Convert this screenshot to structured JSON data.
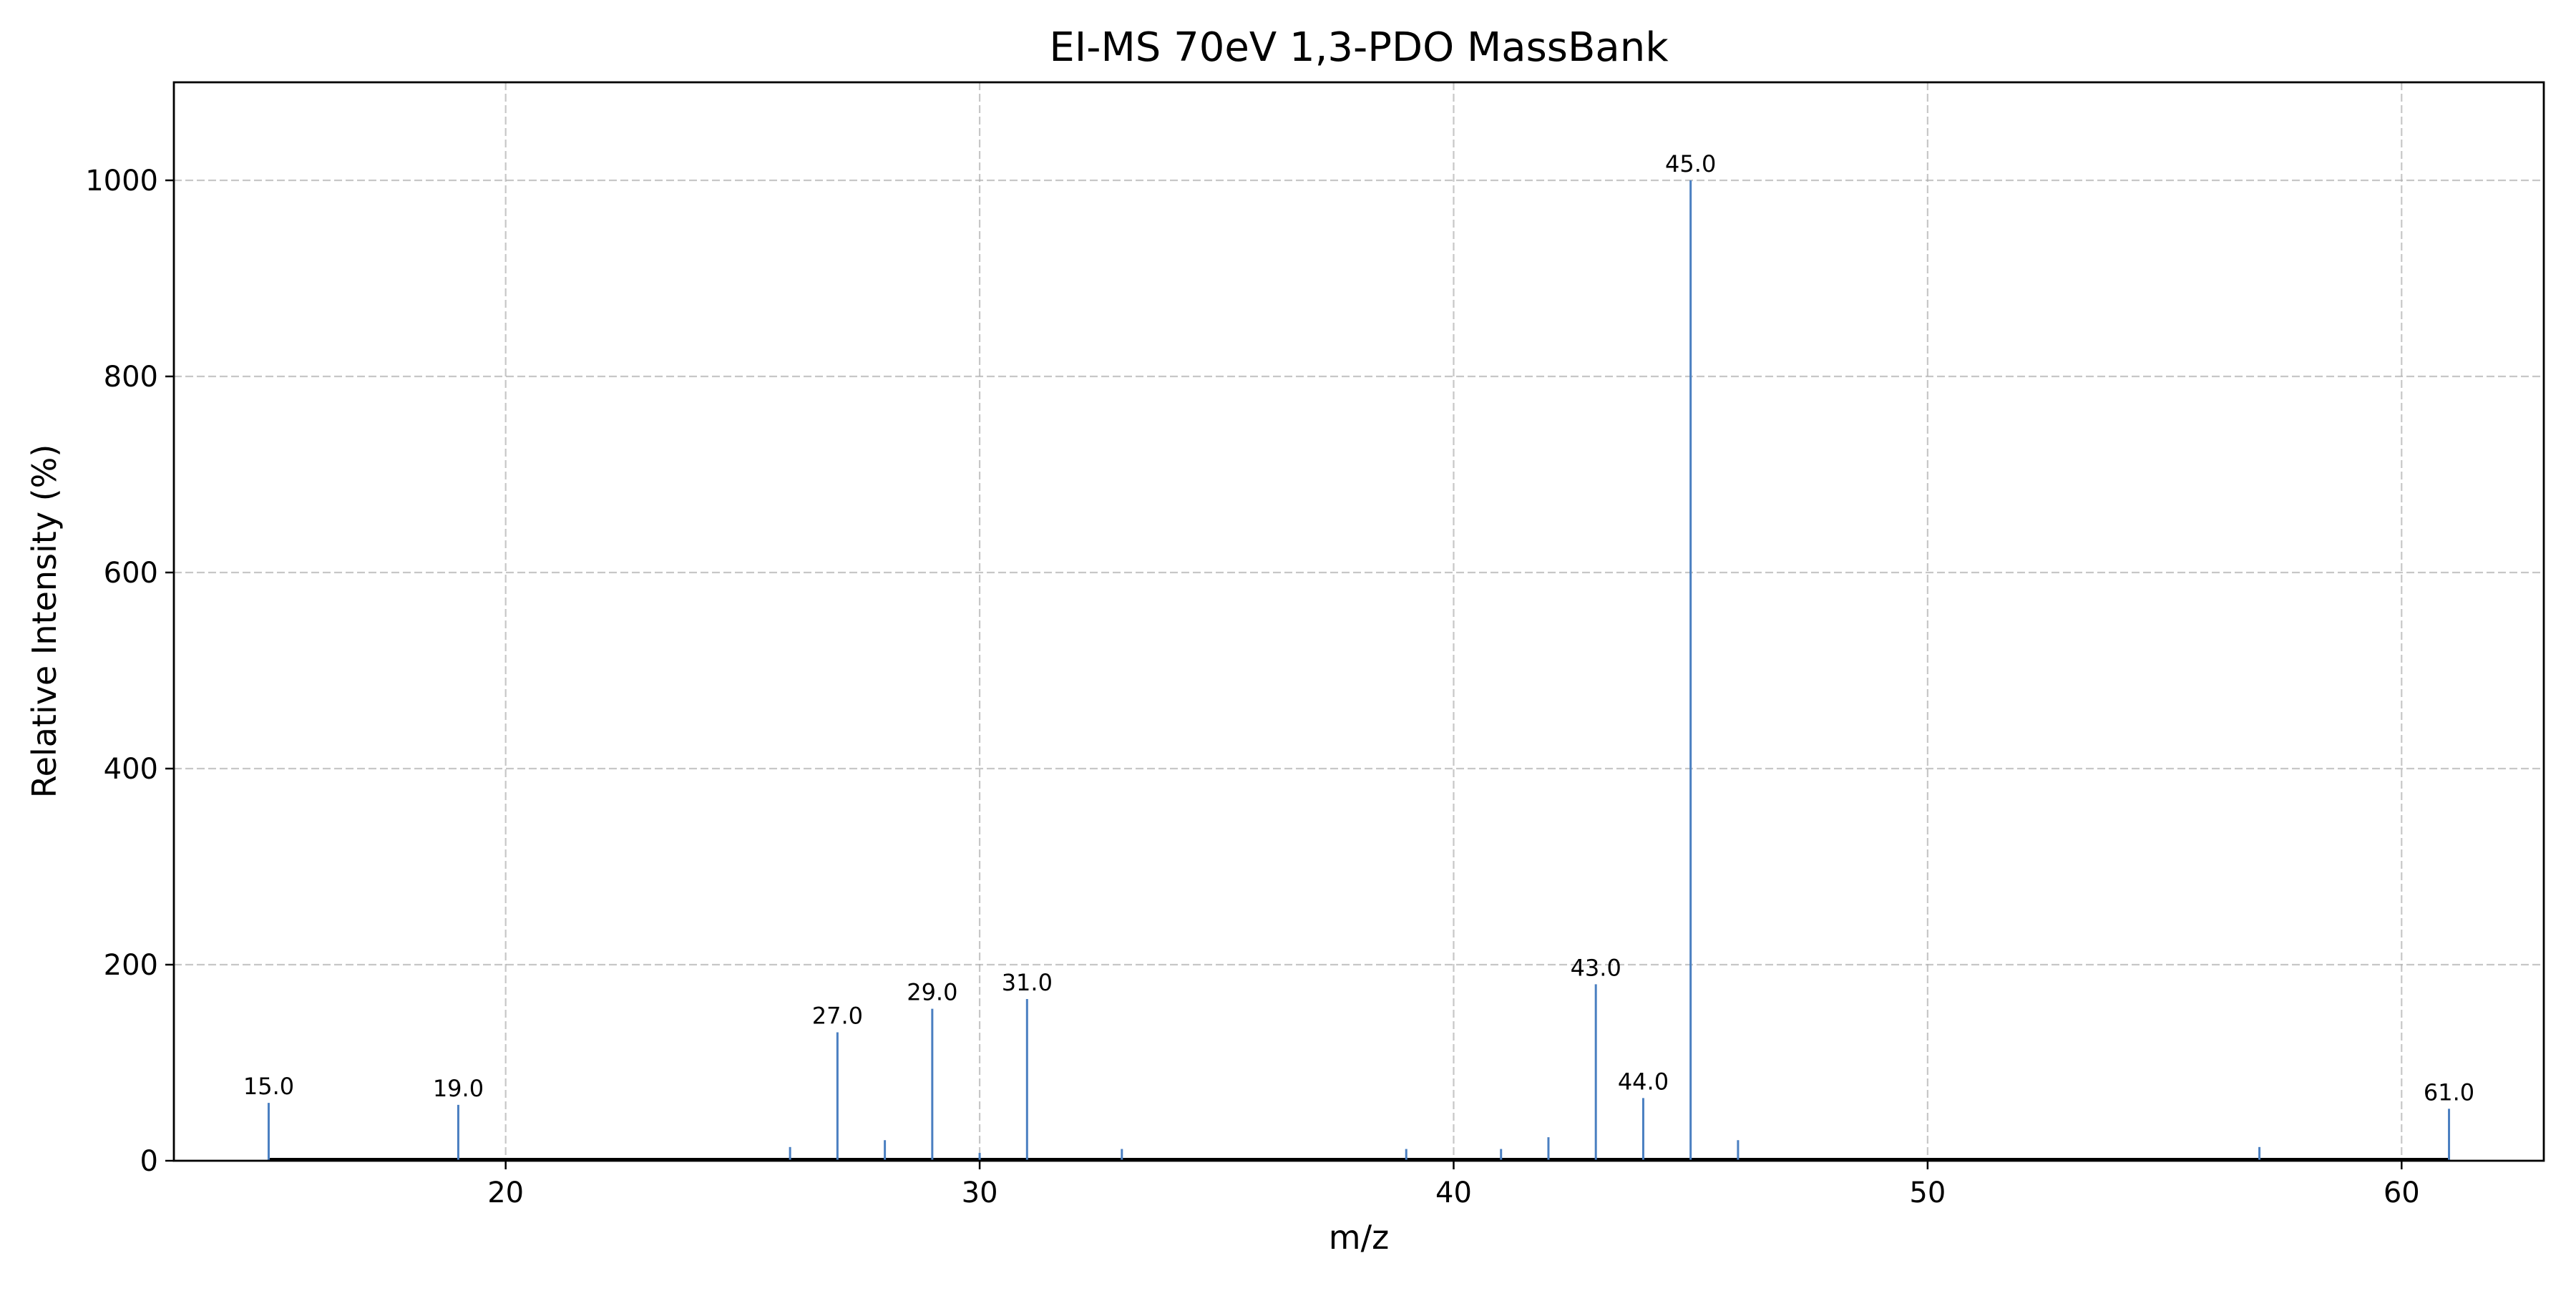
{
  "chart_data": {
    "type": "stem",
    "title": "EI-MS 70eV 1,3-PDO MassBank",
    "xlabel": "m/z",
    "ylabel": "Relative Intensity (%)",
    "xlim": [
      13,
      63
    ],
    "ylim": [
      0,
      1100
    ],
    "xticks": [
      20,
      30,
      40,
      50,
      60
    ],
    "yticks": [
      0,
      200,
      400,
      600,
      800,
      1000
    ],
    "grid": true,
    "color": "#4a7fc1",
    "peaks": [
      {
        "mz": 15,
        "intensity": 59,
        "label": "15.0"
      },
      {
        "mz": 19,
        "intensity": 57,
        "label": "19.0"
      },
      {
        "mz": 26,
        "intensity": 14,
        "label": ""
      },
      {
        "mz": 27,
        "intensity": 131,
        "label": "27.0"
      },
      {
        "mz": 28,
        "intensity": 21,
        "label": ""
      },
      {
        "mz": 29,
        "intensity": 155,
        "label": "29.0"
      },
      {
        "mz": 30,
        "intensity": 8,
        "label": ""
      },
      {
        "mz": 31,
        "intensity": 165,
        "label": "31.0"
      },
      {
        "mz": 33,
        "intensity": 12,
        "label": ""
      },
      {
        "mz": 39,
        "intensity": 12,
        "label": ""
      },
      {
        "mz": 41,
        "intensity": 12,
        "label": ""
      },
      {
        "mz": 42,
        "intensity": 24,
        "label": ""
      },
      {
        "mz": 43,
        "intensity": 180,
        "label": "43.0"
      },
      {
        "mz": 44,
        "intensity": 64,
        "label": "44.0"
      },
      {
        "mz": 45,
        "intensity": 1000,
        "label": "45.0"
      },
      {
        "mz": 46,
        "intensity": 21,
        "label": ""
      },
      {
        "mz": 57,
        "intensity": 14,
        "label": ""
      },
      {
        "mz": 61,
        "intensity": 53,
        "label": "61.0"
      }
    ]
  }
}
